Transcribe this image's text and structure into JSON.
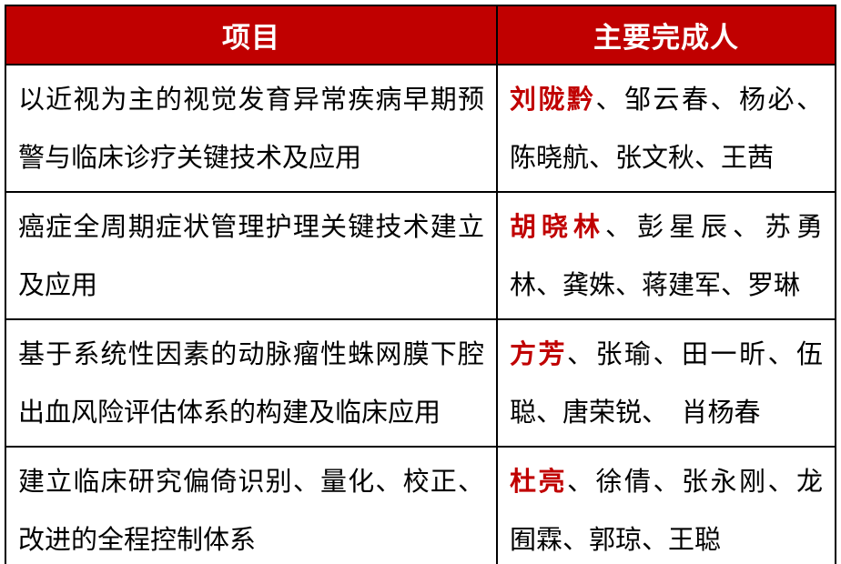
{
  "table": {
    "headers": {
      "project": "项目",
      "people": "主要完成人"
    },
    "rows": [
      {
        "project": "以近视为主的视觉发育异常疾病早期预警与临床诊疗关键技术及应用",
        "lead": "刘陇黔",
        "others": "、邹云春、杨必、陈晓航、张文秋、王茜"
      },
      {
        "project": "癌症全周期症状管理护理关键技术建立及应用",
        "lead": "胡晓林",
        "others": "、彭星辰、苏勇林、龚姝、蒋建军、罗琳"
      },
      {
        "project": "基于系统性因素的动脉瘤性蛛网膜下腔出血风险评估体系的构建及临床应用",
        "lead": "方芳",
        "others": "、张瑜、田一昕、伍聪、唐荣锐、　肖杨春"
      },
      {
        "project": "建立临床研究偏倚识别、量化、校正、改进的全程控制体系",
        "lead": "杜亮",
        "others": "、徐倩、张永刚、龙囿霖、郭琼、王聪"
      }
    ]
  },
  "colors": {
    "header_bg": "#c00000",
    "header_text": "#ffffff",
    "lead_name": "#c00000",
    "body_text": "#000000",
    "border": "#000000"
  }
}
